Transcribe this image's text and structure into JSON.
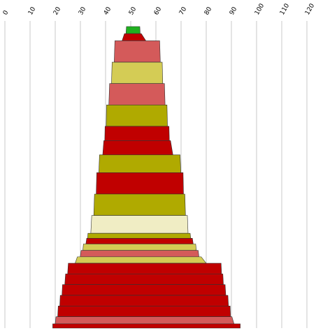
{
  "chart_data": {
    "type": "area",
    "xlim": [
      0,
      120
    ],
    "x_ticks": [
      "0",
      "10",
      "20",
      "30",
      "40",
      "50",
      "60",
      "70",
      "80",
      "90",
      "100",
      "110",
      "120"
    ],
    "grid": true,
    "axis": "top",
    "segments": [
      {
        "left": 48.3,
        "right": 53.6,
        "depth": 1,
        "color": "#20b020"
      },
      {
        "left": 47.5,
        "right": 54.2,
        "depth": 1,
        "color": "#c00000"
      },
      {
        "left": 43.7,
        "right": 61.5,
        "depth": 3,
        "color": "#d45a5a"
      },
      {
        "left": 42.6,
        "right": 62.5,
        "depth": 3,
        "color": "#d4cc55"
      },
      {
        "left": 41.6,
        "right": 63.4,
        "depth": 3,
        "color": "#d45a5a"
      },
      {
        "left": 40.4,
        "right": 64.4,
        "depth": 3,
        "color": "#b0aa00"
      },
      {
        "left": 39.8,
        "right": 65.2,
        "depth": 2,
        "color": "#c00000"
      },
      {
        "left": 39.3,
        "right": 65.8,
        "depth": 2,
        "color": "#c00000"
      },
      {
        "left": 37.6,
        "right": 69.6,
        "depth": 2.5,
        "color": "#b0aa00"
      },
      {
        "left": 36.5,
        "right": 70.8,
        "depth": 3,
        "color": "#c00000"
      },
      {
        "left": 35.6,
        "right": 71.5,
        "depth": 3,
        "color": "#b0aa00"
      },
      {
        "left": 34.5,
        "right": 72.5,
        "depth": 2.5,
        "color": "#f0edc4"
      },
      {
        "left": 33.0,
        "right": 73.6,
        "depth": 0.7,
        "color": "#b0aa00"
      },
      {
        "left": 32.5,
        "right": 74.5,
        "depth": 0.8,
        "color": "#c00000"
      },
      {
        "left": 31.2,
        "right": 75.8,
        "depth": 0.9,
        "color": "#d4cc55"
      },
      {
        "left": 30.3,
        "right": 76.8,
        "depth": 0.9,
        "color": "#d45a5a"
      },
      {
        "left": 28.8,
        "right": 78.0,
        "depth": 0.9,
        "color": "#d4cc55"
      },
      {
        "left": 25.2,
        "right": 85.9,
        "depth": 1.5,
        "color": "#c00000"
      },
      {
        "left": 24.1,
        "right": 86.6,
        "depth": 1.5,
        "color": "#c00000"
      },
      {
        "left": 22.9,
        "right": 87.5,
        "depth": 1.5,
        "color": "#c00000"
      },
      {
        "left": 22.0,
        "right": 88.6,
        "depth": 1.5,
        "color": "#c00000"
      },
      {
        "left": 21.2,
        "right": 89.5,
        "depth": 1.5,
        "color": "#c00000"
      },
      {
        "left": 20.3,
        "right": 90.2,
        "depth": 1,
        "color": "#d45a5a"
      },
      {
        "left": 19.0,
        "right": 93.5,
        "depth": 0.6,
        "color": "#c00000"
      }
    ]
  }
}
